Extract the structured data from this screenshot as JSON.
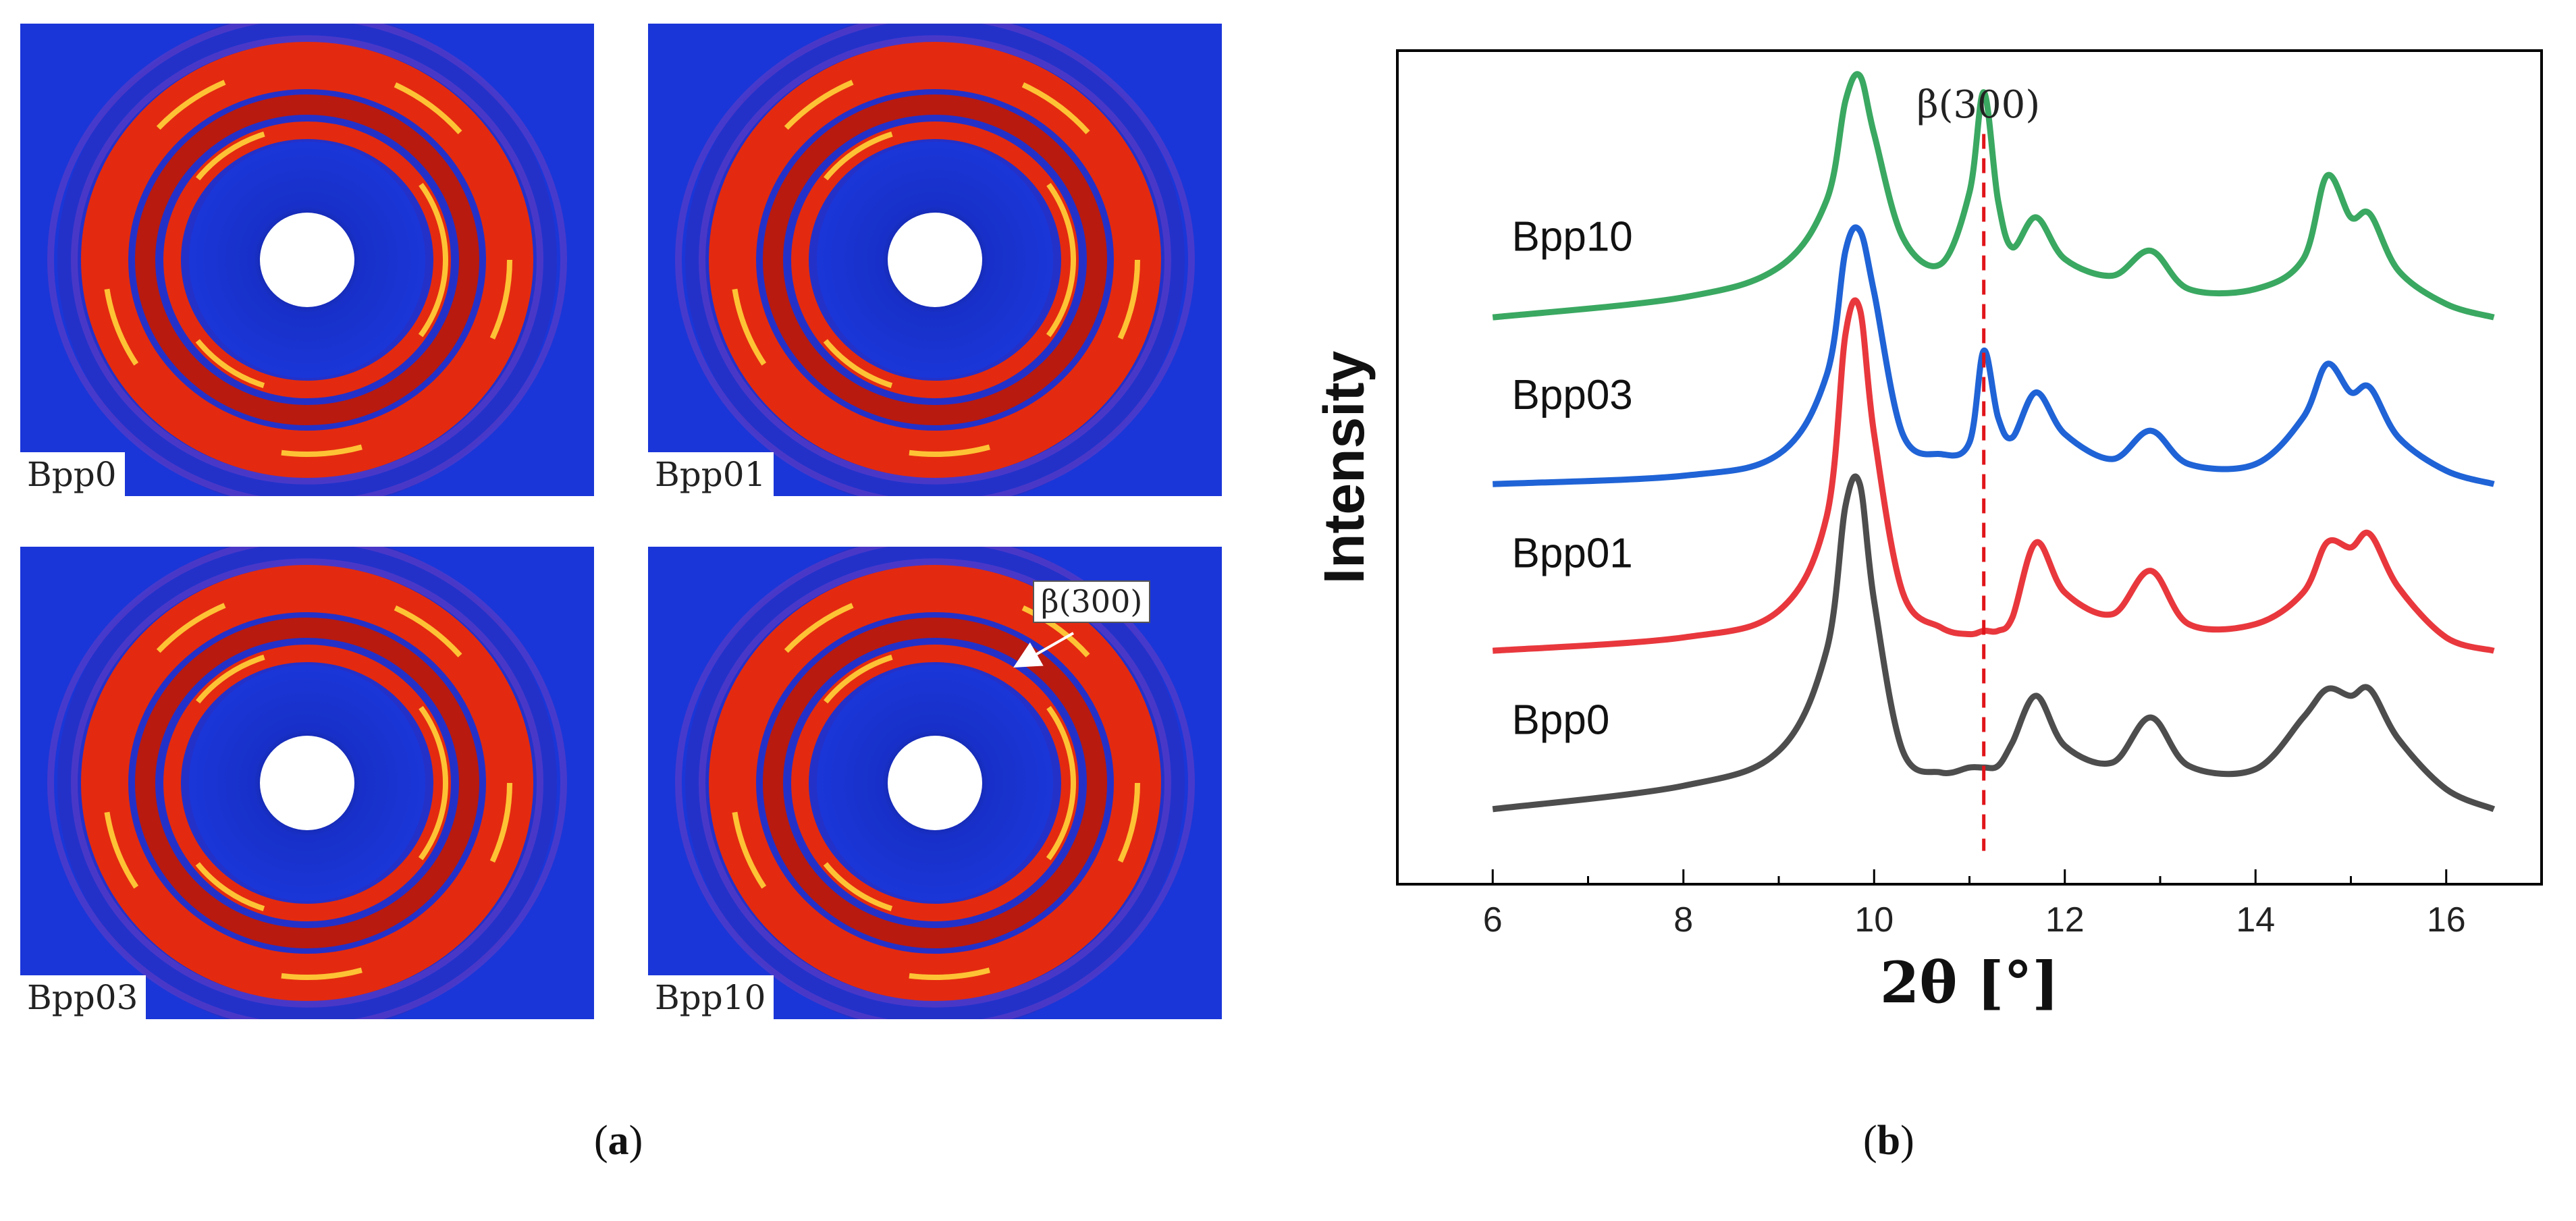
{
  "panel_a": {
    "caption": "a",
    "images": [
      {
        "label": "Bpp0"
      },
      {
        "label": "Bpp01"
      },
      {
        "label": "Bpp03"
      },
      {
        "label": "Bpp10",
        "annotation": "β(300)"
      }
    ],
    "colors": {
      "background": "#1a36d8",
      "ring": "#e32a10",
      "peak": "#ffd43a"
    }
  },
  "panel_b": {
    "caption": "b"
  },
  "chart_data": {
    "type": "line",
    "title": "",
    "xlabel": "2θ [°]",
    "ylabel": "Intensity",
    "xlim": [
      5,
      17
    ],
    "xticks": [
      6,
      8,
      10,
      12,
      14,
      16
    ],
    "grid": false,
    "marker_line": {
      "x": 11.15,
      "label": "β(300)",
      "color": "#e0141a"
    },
    "peaks_note": "peak positions (2θ) approx. 9.85, 11.15, 11.7, 12.9, 14.75, 15.2",
    "series": [
      {
        "name": "Bpp10",
        "color": "#3aa861",
        "offset": 2.95,
        "x": [
          6.0,
          8.0,
          9.0,
          9.5,
          9.7,
          9.85,
          10.0,
          10.3,
          10.7,
          11.0,
          11.15,
          11.3,
          11.45,
          11.7,
          12.0,
          12.5,
          12.9,
          13.3,
          14.0,
          14.5,
          14.75,
          15.0,
          15.2,
          15.5,
          16.0,
          16.5
        ],
        "y": [
          0.0,
          0.12,
          0.3,
          0.7,
          1.3,
          1.45,
          1.1,
          0.48,
          0.32,
          0.75,
          1.35,
          0.7,
          0.42,
          0.6,
          0.35,
          0.25,
          0.4,
          0.17,
          0.17,
          0.35,
          0.85,
          0.6,
          0.62,
          0.28,
          0.08,
          0.0
        ]
      },
      {
        "name": "Bpp03",
        "color": "#1f63d6",
        "offset": 1.95,
        "x": [
          6.0,
          8.0,
          9.0,
          9.5,
          9.7,
          9.85,
          10.0,
          10.3,
          10.7,
          11.0,
          11.15,
          11.3,
          11.45,
          11.7,
          12.0,
          12.5,
          12.9,
          13.3,
          14.0,
          14.5,
          14.75,
          15.0,
          15.2,
          15.5,
          16.0,
          16.5
        ],
        "y": [
          0.0,
          0.05,
          0.18,
          0.65,
          1.4,
          1.52,
          1.15,
          0.3,
          0.18,
          0.25,
          0.8,
          0.4,
          0.28,
          0.55,
          0.3,
          0.15,
          0.32,
          0.12,
          0.12,
          0.4,
          0.72,
          0.55,
          0.58,
          0.28,
          0.08,
          0.0
        ]
      },
      {
        "name": "Bpp01",
        "color": "#e8383d",
        "offset": 0.95,
        "x": [
          6.0,
          8.0,
          9.0,
          9.5,
          9.7,
          9.85,
          10.0,
          10.3,
          10.7,
          11.0,
          11.15,
          11.3,
          11.45,
          11.7,
          12.0,
          12.5,
          12.9,
          13.3,
          14.0,
          14.5,
          14.75,
          15.0,
          15.2,
          15.5,
          16.0,
          16.5
        ],
        "y": [
          0.0,
          0.08,
          0.24,
          0.8,
          1.9,
          2.05,
          1.3,
          0.35,
          0.14,
          0.1,
          0.12,
          0.12,
          0.2,
          0.65,
          0.35,
          0.22,
          0.48,
          0.16,
          0.16,
          0.35,
          0.65,
          0.62,
          0.7,
          0.38,
          0.08,
          0.0
        ]
      },
      {
        "name": "Bpp0",
        "color": "#4d4d4d",
        "offset": 0.0,
        "x": [
          6.0,
          8.0,
          9.0,
          9.5,
          9.7,
          9.85,
          10.0,
          10.3,
          10.7,
          11.0,
          11.15,
          11.3,
          11.45,
          11.7,
          12.0,
          12.5,
          12.9,
          13.3,
          14.0,
          14.5,
          14.75,
          15.0,
          15.2,
          15.5,
          16.0,
          16.5
        ],
        "y": [
          0.0,
          0.14,
          0.35,
          0.95,
          1.82,
          1.95,
          1.25,
          0.35,
          0.22,
          0.25,
          0.25,
          0.26,
          0.4,
          0.68,
          0.38,
          0.28,
          0.55,
          0.26,
          0.24,
          0.55,
          0.72,
          0.68,
          0.72,
          0.42,
          0.12,
          0.0
        ]
      }
    ],
    "label_positions": [
      {
        "name": "Bpp10",
        "x": 6.2,
        "y_offset": 3.35
      },
      {
        "name": "Bpp03",
        "x": 6.2,
        "y_offset": 2.4
      },
      {
        "name": "Bpp01",
        "x": 6.2,
        "y_offset": 1.45
      },
      {
        "name": "Bpp0",
        "x": 6.2,
        "y_offset": 0.45
      }
    ]
  }
}
